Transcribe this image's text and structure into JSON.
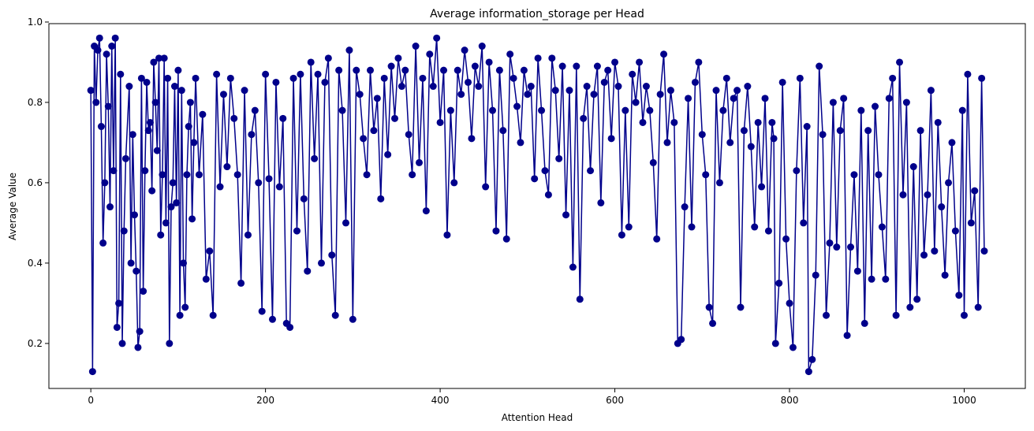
{
  "chart_data": {
    "type": "line",
    "title": "Average information_storage per Head",
    "xlabel": "Attention Head",
    "ylabel": "Average Value",
    "xlim": [
      -48,
      1070
    ],
    "ylim": [
      0.088,
      0.996
    ],
    "xticks": [
      0,
      200,
      400,
      600,
      800,
      1000
    ],
    "xtick_labels": [
      "0",
      "200",
      "400",
      "600",
      "800",
      "1000"
    ],
    "yticks": [
      0.2,
      0.4,
      0.6,
      0.8,
      1.0
    ],
    "ytick_labels": [
      "0.2",
      "0.4",
      "0.6",
      "0.8",
      "1.0"
    ],
    "grid": false,
    "legend": "none",
    "series_color": "#00008b",
    "marker": "circle",
    "n_points": 1024,
    "sample_x": [
      0,
      2,
      4,
      6,
      8,
      10,
      12,
      14,
      16,
      18,
      20,
      22,
      24,
      26,
      28,
      30,
      32,
      34,
      36,
      38,
      40,
      44,
      46,
      48,
      50,
      52,
      54,
      56,
      58,
      60,
      62,
      64,
      66,
      68,
      70,
      72,
      74,
      76,
      78,
      80,
      82,
      84,
      86,
      88,
      90,
      92,
      94,
      96,
      98,
      100,
      102,
      104,
      106,
      108,
      110,
      112,
      114,
      116,
      118,
      120,
      124,
      128,
      132,
      136,
      140,
      144,
      148,
      152,
      156,
      160,
      164,
      168,
      172,
      176,
      180,
      184,
      188,
      192,
      196,
      200,
      204,
      208,
      212,
      216,
      220,
      224,
      228,
      232,
      236,
      240,
      244,
      248,
      252,
      256,
      260,
      264,
      268,
      272,
      276,
      280,
      284,
      288,
      292,
      296,
      300,
      304,
      308,
      312,
      316,
      320,
      324,
      328,
      332,
      336,
      340,
      344,
      348,
      352,
      356,
      360,
      364,
      368,
      372,
      376,
      380,
      384,
      388,
      392,
      396,
      400,
      404,
      408,
      412,
      416,
      420,
      424,
      428,
      432,
      436,
      440,
      444,
      448,
      452,
      456,
      460,
      464,
      468,
      472,
      476,
      480,
      484,
      488,
      492,
      496,
      500,
      504,
      508,
      512,
      516,
      520,
      524,
      528,
      532,
      536,
      540,
      544,
      548,
      552,
      556,
      560,
      564,
      568,
      572,
      576,
      580,
      584,
      588,
      592,
      596,
      600,
      604,
      608,
      612,
      616,
      620,
      624,
      628,
      632,
      636,
      640,
      644,
      648,
      652,
      656,
      660,
      664,
      668,
      672,
      676,
      680,
      684,
      688,
      692,
      696,
      700,
      704,
      708,
      712,
      716,
      720,
      724,
      728,
      732,
      736,
      740,
      744,
      748,
      752,
      756,
      760,
      764,
      768,
      772,
      776,
      780,
      782,
      784,
      788,
      792,
      796,
      800,
      804,
      808,
      812,
      816,
      820,
      822,
      826,
      830,
      834,
      838,
      842,
      846,
      850,
      854,
      858,
      862,
      866,
      870,
      874,
      878,
      882,
      886,
      890,
      894,
      898,
      902,
      906,
      910,
      914,
      918,
      922,
      926,
      930,
      934,
      938,
      942,
      946,
      950,
      954,
      958,
      962,
      966,
      970,
      974,
      978,
      982,
      986,
      990,
      994,
      998,
      1000,
      1004,
      1008,
      1012,
      1016,
      1020,
      1023
    ],
    "sample_y": [
      0.83,
      0.13,
      0.94,
      0.8,
      0.93,
      0.96,
      0.74,
      0.45,
      0.6,
      0.92,
      0.79,
      0.54,
      0.94,
      0.63,
      0.96,
      0.24,
      0.3,
      0.87,
      0.2,
      0.48,
      0.66,
      0.84,
      0.4,
      0.72,
      0.52,
      0.38,
      0.19,
      0.23,
      0.86,
      0.33,
      0.63,
      0.85,
      0.73,
      0.75,
      0.58,
      0.9,
      0.8,
      0.68,
      0.91,
      0.47,
      0.62,
      0.91,
      0.5,
      0.86,
      0.2,
      0.54,
      0.6,
      0.84,
      0.55,
      0.88,
      0.27,
      0.83,
      0.4,
      0.29,
      0.62,
      0.74,
      0.8,
      0.51,
      0.7,
      0.86,
      0.62,
      0.77,
      0.36,
      0.43,
      0.27,
      0.87,
      0.59,
      0.82,
      0.64,
      0.86,
      0.76,
      0.62,
      0.35,
      0.83,
      0.47,
      0.72,
      0.78,
      0.6,
      0.28,
      0.87,
      0.61,
      0.26,
      0.85,
      0.59,
      0.76,
      0.25,
      0.24,
      0.86,
      0.48,
      0.87,
      0.56,
      0.38,
      0.9,
      0.66,
      0.87,
      0.4,
      0.85,
      0.91,
      0.42,
      0.27,
      0.88,
      0.78,
      0.5,
      0.93,
      0.26,
      0.88,
      0.82,
      0.71,
      0.62,
      0.88,
      0.73,
      0.81,
      0.56,
      0.86,
      0.67,
      0.89,
      0.76,
      0.91,
      0.84,
      0.88,
      0.72,
      0.62,
      0.94,
      0.65,
      0.86,
      0.53,
      0.92,
      0.84,
      0.96,
      0.75,
      0.88,
      0.47,
      0.78,
      0.6,
      0.88,
      0.82,
      0.93,
      0.85,
      0.71,
      0.89,
      0.84,
      0.94,
      0.59,
      0.9,
      0.78,
      0.48,
      0.88,
      0.73,
      0.46,
      0.92,
      0.86,
      0.79,
      0.7,
      0.88,
      0.82,
      0.84,
      0.61,
      0.91,
      0.78,
      0.63,
      0.57,
      0.91,
      0.83,
      0.66,
      0.89,
      0.52,
      0.83,
      0.39,
      0.89,
      0.31,
      0.76,
      0.84,
      0.63,
      0.82,
      0.89,
      0.55,
      0.85,
      0.88,
      0.71,
      0.9,
      0.84,
      0.47,
      0.78,
      0.49,
      0.87,
      0.8,
      0.9,
      0.75,
      0.84,
      0.78,
      0.65,
      0.46,
      0.82,
      0.92,
      0.7,
      0.83,
      0.75,
      0.2,
      0.21,
      0.54,
      0.81,
      0.49,
      0.85,
      0.9,
      0.72,
      0.62,
      0.29,
      0.25,
      0.83,
      0.6,
      0.78,
      0.86,
      0.7,
      0.81,
      0.83,
      0.29,
      0.73,
      0.84,
      0.69,
      0.49,
      0.75,
      0.59,
      0.81,
      0.48,
      0.75,
      0.71,
      0.2,
      0.35,
      0.85,
      0.46,
      0.3,
      0.19,
      0.63,
      0.86,
      0.5,
      0.74,
      0.13,
      0.16,
      0.37,
      0.89,
      0.72,
      0.27,
      0.45,
      0.8,
      0.44,
      0.73,
      0.81,
      0.22,
      0.44,
      0.62,
      0.38,
      0.78,
      0.25,
      0.73,
      0.36,
      0.79,
      0.62,
      0.49,
      0.36,
      0.81,
      0.86,
      0.27,
      0.9,
      0.57,
      0.8,
      0.29,
      0.64,
      0.31,
      0.73,
      0.42,
      0.57,
      0.83,
      0.43,
      0.75,
      0.54,
      0.37,
      0.6,
      0.7,
      0.48,
      0.32,
      0.78,
      0.27,
      0.87,
      0.5,
      0.58,
      0.29,
      0.86,
      0.43,
      0.82,
      0.18,
      0.22,
      0.65,
      0.3,
      0.86,
      0.21,
      0.37,
      0.53,
      0.83,
      0.91
    ]
  }
}
